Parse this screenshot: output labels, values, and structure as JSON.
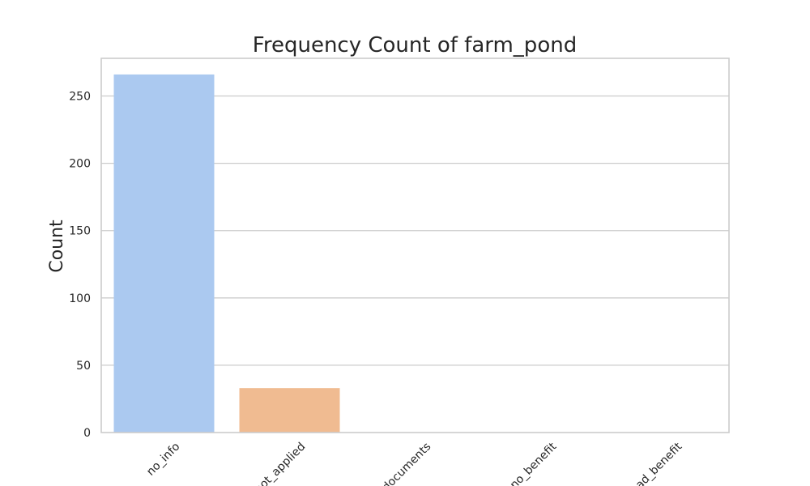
{
  "chart_data": {
    "type": "bar",
    "title": "Frequency Count of farm_pond",
    "xlabel": "",
    "ylabel": "Count",
    "categories": [
      "no_info",
      "not_applied",
      "no_documents",
      "no_benefit",
      "had_benefit"
    ],
    "values": [
      266,
      33,
      0,
      0,
      0
    ],
    "colors": [
      "#abc9f0",
      "#f0bb91",
      "#8fd19e",
      "#f4a7a3",
      "#c9b3e6"
    ],
    "ylim": [
      0,
      278
    ],
    "yticks": [
      0,
      50,
      100,
      150,
      200,
      250
    ],
    "grid": "horizontal",
    "legend": "none"
  }
}
